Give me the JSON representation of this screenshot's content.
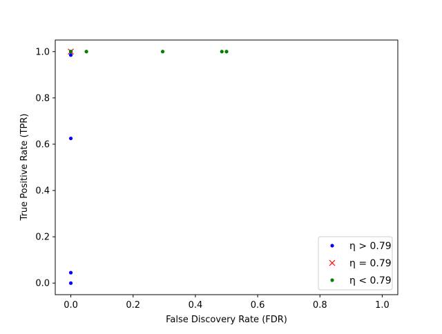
{
  "chart_data": {
    "type": "scatter",
    "xlabel": "False Discovery Rate (FDR)",
    "ylabel": "True Positive Rate (TPR)",
    "xlim": [
      -0.05,
      1.05
    ],
    "ylim": [
      -0.05,
      1.05
    ],
    "xticks": [
      "0.0",
      "0.2",
      "0.4",
      "0.6",
      "0.8",
      "1.0"
    ],
    "yticks": [
      "0.0",
      "0.2",
      "0.4",
      "0.6",
      "0.8",
      "1.0"
    ],
    "grid": false,
    "legend_position": "lower-right",
    "series": [
      {
        "name": "η > 0.79",
        "color": "#0000ff",
        "marker": "dot",
        "points": [
          [
            0.0,
            0.0
          ],
          [
            0.0,
            0.045
          ],
          [
            0.0,
            0.625
          ],
          [
            0.0,
            0.985
          ],
          [
            0.0,
            1.0
          ]
        ]
      },
      {
        "name": "η = 0.79",
        "color": "#ff0000",
        "marker": "x",
        "points": [
          [
            0.0,
            1.0
          ]
        ]
      },
      {
        "name": "η < 0.79",
        "color": "#008000",
        "marker": "dot",
        "points": [
          [
            0.0,
            1.0
          ],
          [
            0.05,
            1.0
          ],
          [
            0.295,
            1.0
          ],
          [
            0.485,
            1.0
          ],
          [
            0.5,
            1.0
          ]
        ]
      }
    ]
  }
}
